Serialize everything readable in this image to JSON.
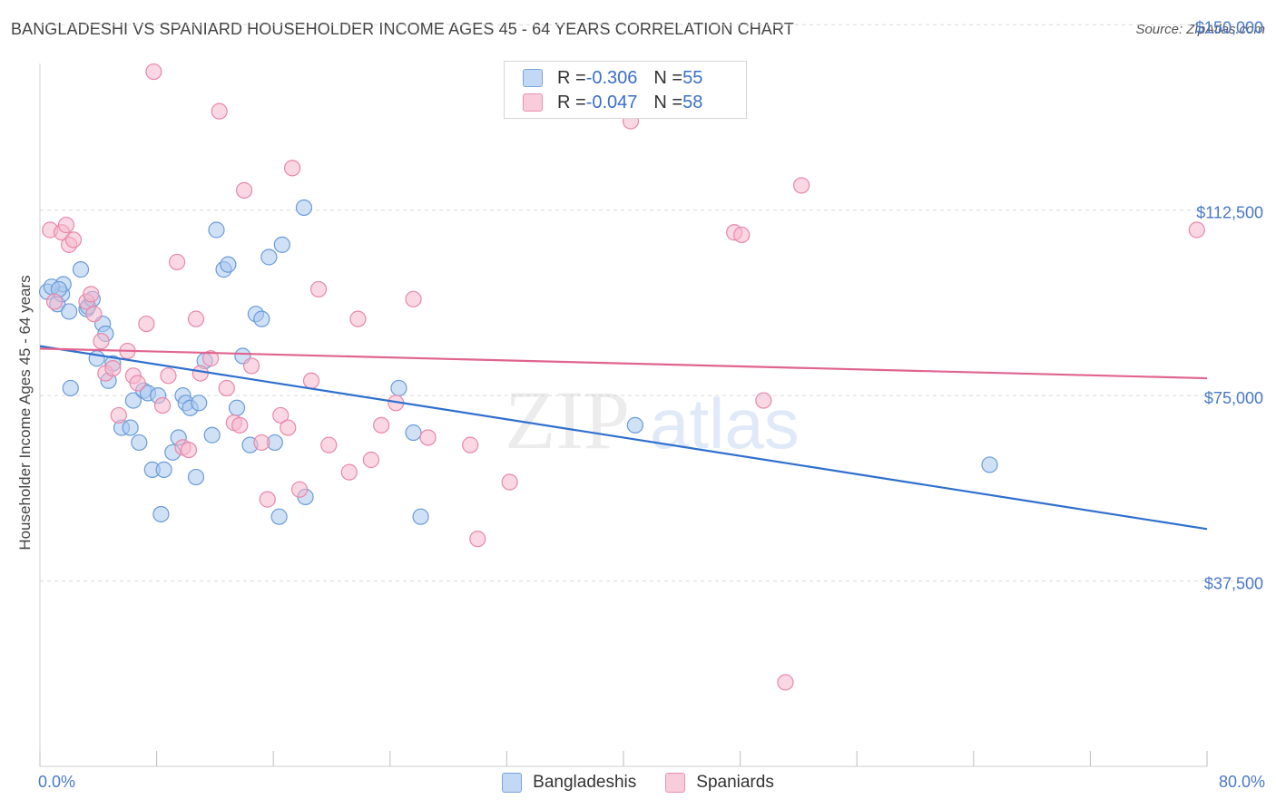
{
  "header": {
    "title": "BANGLADESHI VS SPANIARD HOUSEHOLDER INCOME AGES 45 - 64 YEARS CORRELATION CHART",
    "source": "Source: ZipAtlas.com"
  },
  "watermark": {
    "zip": "ZIP",
    "atlas": "atlas"
  },
  "legend": {
    "items": [
      {
        "r_label": "R = ",
        "r_value": "-0.306",
        "n_label": "N = ",
        "n_value": "55"
      },
      {
        "r_label": "R = ",
        "r_value": "-0.047",
        "n_label": "N = ",
        "n_value": "58"
      }
    ]
  },
  "bottom_legend": {
    "series_a": "Bangladeshis",
    "series_b": "Spaniards"
  },
  "colors": {
    "blue_fill": "#aac8ef",
    "blue_stroke": "#6a9bd8",
    "blue_line": "#2e6fce",
    "pink_fill": "#f6b8cc",
    "pink_stroke": "#e887a8",
    "pink_line": "#e0648e",
    "grid": "#d9d9d9",
    "tick_text": "#4a79c9"
  },
  "chart_data": {
    "type": "scatter",
    "title": "BANGLADESHI VS SPANIARD HOUSEHOLDER INCOME AGES 45 - 64 YEARS CORRELATION CHART",
    "xlabel": "",
    "ylabel": "Householder Income Ages 45 - 64 years",
    "x_tick_labels": [
      "0.0%",
      "80.0%"
    ],
    "y_tick_labels": [
      "$150,000",
      "$112,500",
      "$75,000",
      "$37,500"
    ],
    "y_ticks": [
      150000,
      112500,
      75000,
      37500
    ],
    "xlim": [
      0,
      80
    ],
    "ylim": [
      0,
      155000
    ],
    "grid": true,
    "legend_placement": "top-center",
    "series": [
      {
        "name": "Bangladeshis",
        "color": "#aac8ef",
        "trend": {
          "x": [
            0,
            80
          ],
          "y": [
            85000,
            48000
          ]
        },
        "points": [
          [
            0.5,
            96000
          ],
          [
            1.2,
            93500
          ],
          [
            1.5,
            95500
          ],
          [
            1.6,
            97500
          ],
          [
            2.0,
            92000
          ],
          [
            2.8,
            100500
          ],
          [
            3.2,
            92500
          ],
          [
            3.3,
            93000
          ],
          [
            3.6,
            94500
          ],
          [
            4.3,
            89500
          ],
          [
            2.1,
            76500
          ],
          [
            3.9,
            82500
          ],
          [
            4.5,
            87500
          ],
          [
            4.7,
            78000
          ],
          [
            5.0,
            81500
          ],
          [
            5.6,
            68500
          ],
          [
            6.2,
            68500
          ],
          [
            6.4,
            74000
          ],
          [
            6.8,
            65500
          ],
          [
            7.1,
            76000
          ],
          [
            7.4,
            75500
          ],
          [
            7.7,
            60000
          ],
          [
            8.1,
            75000
          ],
          [
            8.3,
            51000
          ],
          [
            8.5,
            60000
          ],
          [
            9.1,
            63500
          ],
          [
            9.5,
            66500
          ],
          [
            9.8,
            75000
          ],
          [
            10.0,
            73500
          ],
          [
            10.3,
            72500
          ],
          [
            10.7,
            58500
          ],
          [
            10.9,
            73500
          ],
          [
            11.3,
            82000
          ],
          [
            11.8,
            67000
          ],
          [
            12.1,
            108500
          ],
          [
            12.6,
            100500
          ],
          [
            12.9,
            101500
          ],
          [
            13.5,
            72500
          ],
          [
            13.9,
            83000
          ],
          [
            14.4,
            65000
          ],
          [
            14.8,
            91500
          ],
          [
            15.2,
            90500
          ],
          [
            15.7,
            103000
          ],
          [
            16.1,
            65500
          ],
          [
            16.4,
            50500
          ],
          [
            16.6,
            105500
          ],
          [
            18.1,
            113000
          ],
          [
            18.2,
            54500
          ],
          [
            24.6,
            76500
          ],
          [
            25.6,
            67500
          ],
          [
            26.1,
            50500
          ],
          [
            40.8,
            69000
          ],
          [
            65.1,
            61000
          ],
          [
            0.8,
            97000
          ],
          [
            1.3,
            96500
          ]
        ]
      },
      {
        "name": "Spaniards",
        "color": "#f6b8cc",
        "trend": {
          "x": [
            0,
            80
          ],
          "y": [
            84500,
            78500
          ]
        },
        "points": [
          [
            0.7,
            108500
          ],
          [
            1.0,
            94000
          ],
          [
            1.5,
            108000
          ],
          [
            1.8,
            109500
          ],
          [
            2.0,
            105500
          ],
          [
            2.3,
            106500
          ],
          [
            3.2,
            94000
          ],
          [
            3.5,
            95500
          ],
          [
            3.7,
            91500
          ],
          [
            4.2,
            86000
          ],
          [
            4.5,
            79500
          ],
          [
            5.0,
            80500
          ],
          [
            5.4,
            71000
          ],
          [
            6.0,
            84000
          ],
          [
            6.4,
            79000
          ],
          [
            6.7,
            77500
          ],
          [
            7.3,
            89500
          ],
          [
            7.8,
            140500
          ],
          [
            8.4,
            73000
          ],
          [
            8.8,
            79000
          ],
          [
            9.4,
            102000
          ],
          [
            9.8,
            64500
          ],
          [
            10.2,
            64000
          ],
          [
            10.7,
            90500
          ],
          [
            11.0,
            79500
          ],
          [
            11.7,
            82500
          ],
          [
            12.3,
            132500
          ],
          [
            12.8,
            76500
          ],
          [
            13.3,
            69500
          ],
          [
            13.7,
            69000
          ],
          [
            14.0,
            116500
          ],
          [
            14.5,
            81000
          ],
          [
            15.2,
            65500
          ],
          [
            15.6,
            54000
          ],
          [
            16.5,
            71000
          ],
          [
            17.0,
            68500
          ],
          [
            17.3,
            121000
          ],
          [
            17.8,
            56000
          ],
          [
            18.6,
            78000
          ],
          [
            19.1,
            96500
          ],
          [
            19.8,
            65000
          ],
          [
            21.2,
            59500
          ],
          [
            21.8,
            90500
          ],
          [
            22.7,
            62000
          ],
          [
            23.4,
            69000
          ],
          [
            24.4,
            73500
          ],
          [
            25.6,
            94500
          ],
          [
            26.6,
            66500
          ],
          [
            29.5,
            65000
          ],
          [
            30.0,
            46000
          ],
          [
            32.2,
            57500
          ],
          [
            40.5,
            130500
          ],
          [
            47.6,
            108000
          ],
          [
            48.1,
            107500
          ],
          [
            49.6,
            74000
          ],
          [
            51.1,
            17000
          ],
          [
            52.2,
            117500
          ],
          [
            79.3,
            108500
          ]
        ]
      }
    ]
  }
}
